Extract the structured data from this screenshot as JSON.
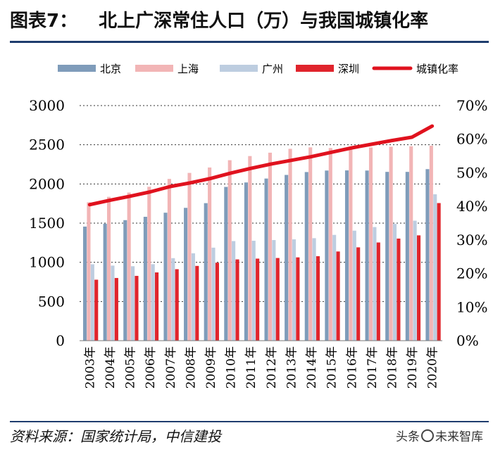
{
  "title": {
    "label": "图表7：",
    "text": "北上广深常住人口（万）与我国城镇化率"
  },
  "source": "资料来源：国家统计局，中信建投",
  "watermark": {
    "left": "头条",
    "right": "未来智库"
  },
  "colors": {
    "beijing": "#7f9cba",
    "shanghai": "#f2b5b6",
    "guangzhou": "#bdcde0",
    "shenzhen": "#e0242c",
    "urban": "#e0121e",
    "grid": "#333333",
    "rule": "#1f3d6e"
  },
  "chart_data": {
    "type": "bar",
    "title": "北上广深常住人口（万）与我国城镇化率",
    "categories": [
      "2003年",
      "2004年",
      "2005年",
      "2006年",
      "2007年",
      "2008年",
      "2009年",
      "2010年",
      "2011年",
      "2012年",
      "2013年",
      "2014年",
      "2015年",
      "2016年",
      "2017年",
      "2018年",
      "2019年",
      "2020年"
    ],
    "series": [
      {
        "name": "北京",
        "axis": "left",
        "kind": "bar",
        "color": "#7f9cba",
        "values": [
          1456,
          1493,
          1538,
          1581,
          1633,
          1695,
          1755,
          1962,
          2019,
          2069,
          2115,
          2152,
          2171,
          2173,
          2171,
          2154,
          2154,
          2189
        ]
      },
      {
        "name": "上海",
        "axis": "left",
        "kind": "bar",
        "color": "#f2b5b6",
        "values": [
          1766,
          1835,
          1890,
          1964,
          2064,
          2141,
          2210,
          2303,
          2356,
          2399,
          2448,
          2467,
          2458,
          2467,
          2466,
          2475,
          2481,
          2488
        ]
      },
      {
        "name": "广州",
        "axis": "left",
        "kind": "bar",
        "color": "#bdcde0",
        "values": [
          975,
          958,
          950,
          976,
          1053,
          1115,
          1187,
          1271,
          1275,
          1284,
          1293,
          1308,
          1350,
          1404,
          1450,
          1490,
          1531,
          1868
        ]
      },
      {
        "name": "深圳",
        "axis": "left",
        "kind": "bar",
        "color": "#e0242c",
        "values": [
          778,
          800,
          827,
          871,
          912,
          954,
          995,
          1037,
          1047,
          1055,
          1063,
          1078,
          1138,
          1191,
          1253,
          1303,
          1344,
          1756
        ]
      },
      {
        "name": "城镇化率",
        "axis": "right",
        "kind": "line",
        "color": "#e0121e",
        "values": [
          40.5,
          41.8,
          43.0,
          44.3,
          45.9,
          47.0,
          48.3,
          49.9,
          51.3,
          52.6,
          53.7,
          54.8,
          56.1,
          57.4,
          58.5,
          59.6,
          60.6,
          63.9
        ]
      }
    ],
    "legend": [
      "北京",
      "上海",
      "广州",
      "深圳",
      "城镇化率"
    ],
    "legend_position": "top",
    "ylim_left": [
      0,
      3000
    ],
    "yticks_left": [
      "0",
      "500",
      "1000",
      "1500",
      "2000",
      "2500",
      "3000"
    ],
    "ylim_right": [
      0,
      70
    ],
    "yticks_right": [
      "0%",
      "10%",
      "20%",
      "30%",
      "40%",
      "50%",
      "60%",
      "70%"
    ],
    "grid": true
  }
}
